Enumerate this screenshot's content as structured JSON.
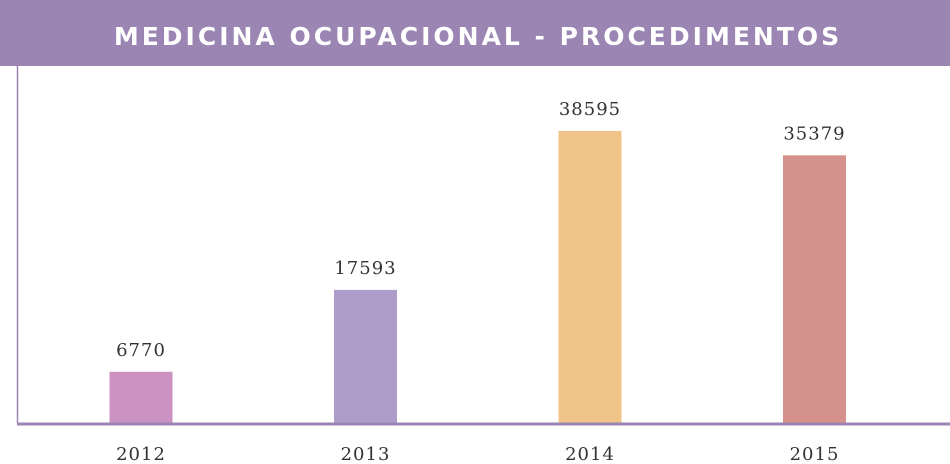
{
  "chart_data": {
    "type": "bar",
    "title": "MEDICINA OCUPACIONAL - PROCEDIMENTOS",
    "categories": [
      "2012",
      "2013",
      "2014",
      "2015"
    ],
    "values": [
      6770,
      17593,
      38595,
      35379
    ],
    "colors": [
      "#cc92c2",
      "#ae9dca",
      "#f0c388",
      "#d5918b"
    ]
  }
}
